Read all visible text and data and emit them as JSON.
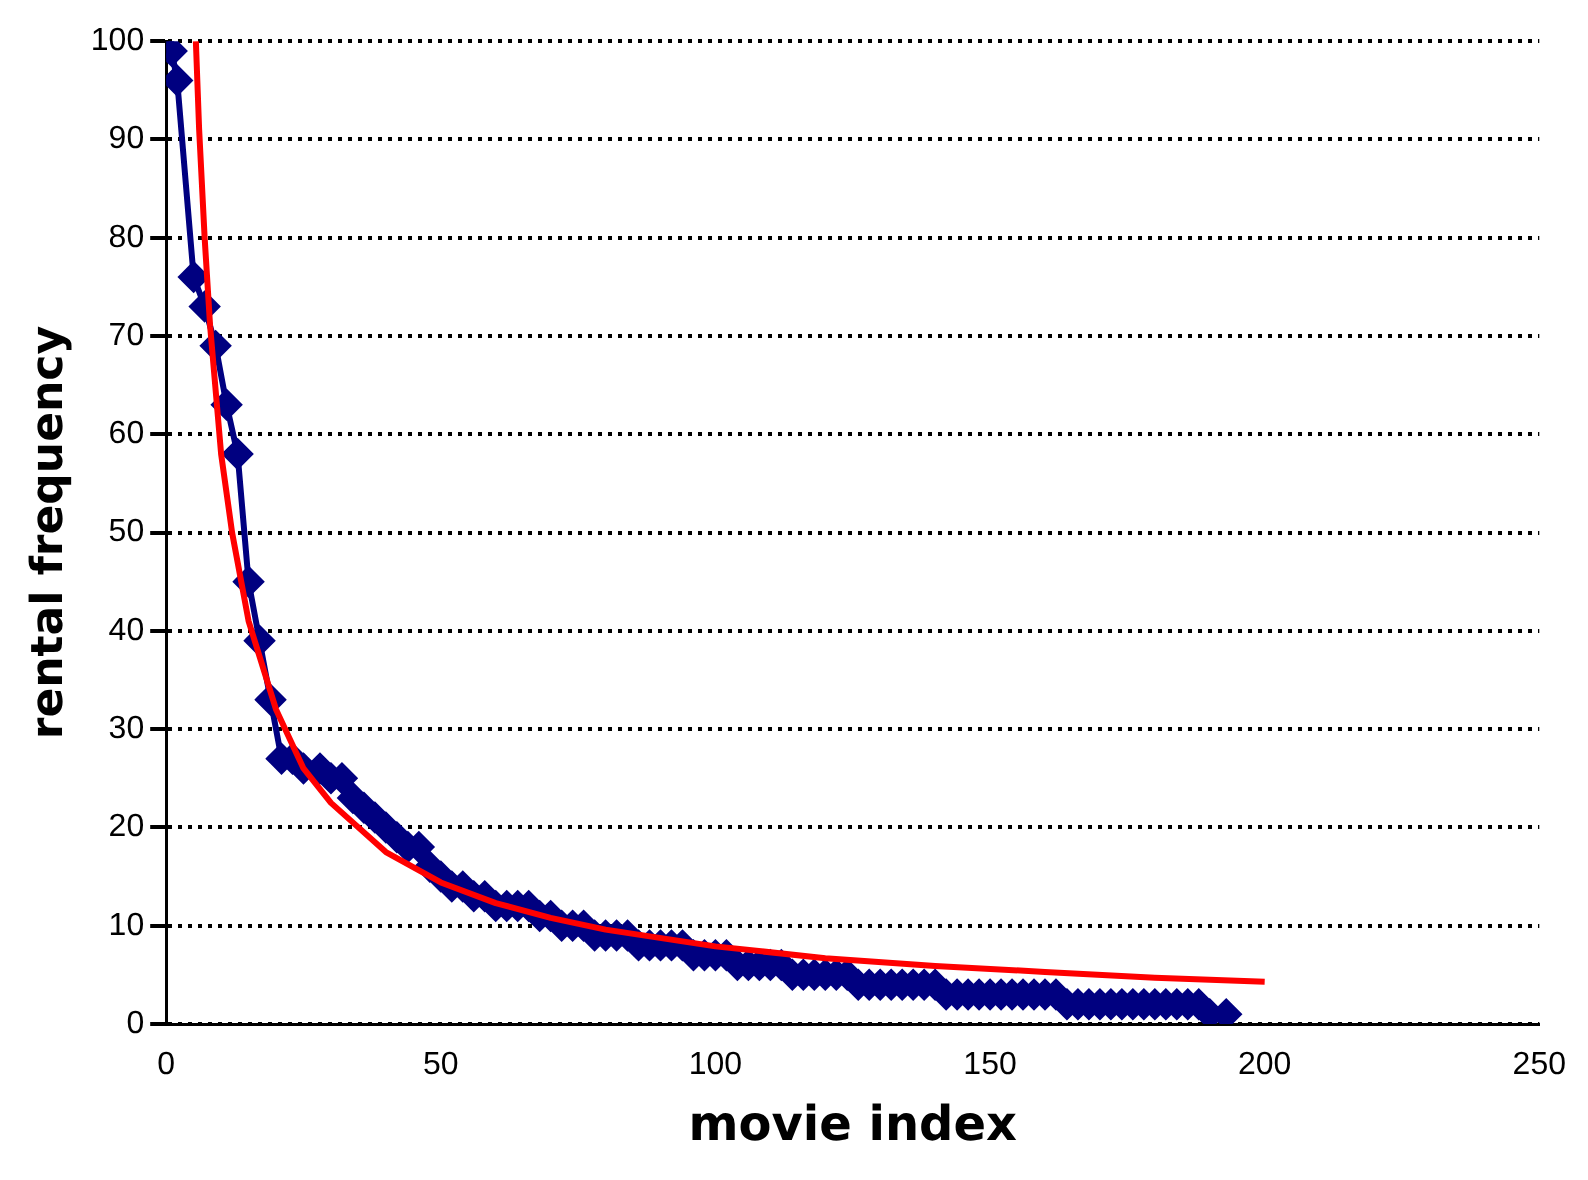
{
  "chart_data": {
    "type": "line",
    "xlabel": "movie index",
    "ylabel": "rental frequency",
    "xlim": [
      0,
      250
    ],
    "xticks": [
      0,
      50,
      100,
      150,
      200,
      250
    ],
    "ylim": [
      0,
      100
    ],
    "yticks": [
      0,
      10,
      20,
      30,
      40,
      50,
      60,
      70,
      80,
      90,
      100
    ],
    "grid": "y",
    "legend": false,
    "line_style": "solid",
    "series": [
      {
        "color": "#000080",
        "marker": "diamond",
        "x": [
          1,
          2,
          5,
          7,
          9,
          11,
          13,
          15,
          17,
          19,
          21,
          23,
          25,
          28,
          30,
          32,
          34,
          36,
          38,
          40,
          42,
          44,
          46,
          48,
          50,
          52,
          54,
          56,
          58,
          60,
          62,
          64,
          66,
          68,
          70,
          72,
          74,
          76,
          78,
          80,
          82,
          84,
          86,
          88,
          90,
          92,
          94,
          96,
          98,
          100,
          102,
          104,
          106,
          108,
          110,
          112,
          114,
          116,
          118,
          120,
          122,
          124,
          126,
          128,
          130,
          132,
          134,
          136,
          138,
          140,
          142,
          144,
          146,
          148,
          150,
          152,
          154,
          156,
          158,
          160,
          162,
          164,
          166,
          168,
          170,
          172,
          174,
          176,
          178,
          180,
          182,
          184,
          186,
          188,
          190,
          193
        ],
        "values": [
          99,
          96,
          76,
          73,
          69,
          63,
          58,
          45,
          39,
          33,
          27,
          27,
          26,
          26,
          25,
          25,
          23,
          22,
          21,
          20,
          19,
          18,
          18,
          16,
          15,
          14,
          14,
          13,
          13,
          12,
          12,
          12,
          12,
          11,
          11,
          10,
          10,
          10,
          9,
          9,
          9,
          9,
          8,
          8,
          8,
          8,
          8,
          7,
          7,
          7,
          7,
          6,
          6,
          6,
          6,
          6,
          5,
          5,
          5,
          5,
          5,
          5,
          4,
          4,
          4,
          4,
          4,
          4,
          4,
          4,
          3,
          3,
          3,
          3,
          3,
          3,
          3,
          3,
          3,
          3,
          3,
          2,
          2,
          2,
          2,
          2,
          2,
          2,
          2,
          2,
          2,
          2,
          2,
          2,
          1,
          1
        ]
      },
      {
        "color": "#ff0000",
        "marker": "none",
        "x": [
          5.4,
          6,
          7,
          8,
          10,
          12,
          15,
          20,
          25,
          30,
          40,
          50,
          60,
          70,
          80,
          100,
          120,
          140,
          160,
          180,
          200
        ],
        "values": [
          100,
          91,
          80,
          71,
          58,
          50,
          41,
          32,
          26,
          22.5,
          17.5,
          14.4,
          12.3,
          10.8,
          9.6,
          7.9,
          6.7,
          5.9,
          5.3,
          4.7,
          4.3
        ]
      }
    ]
  }
}
